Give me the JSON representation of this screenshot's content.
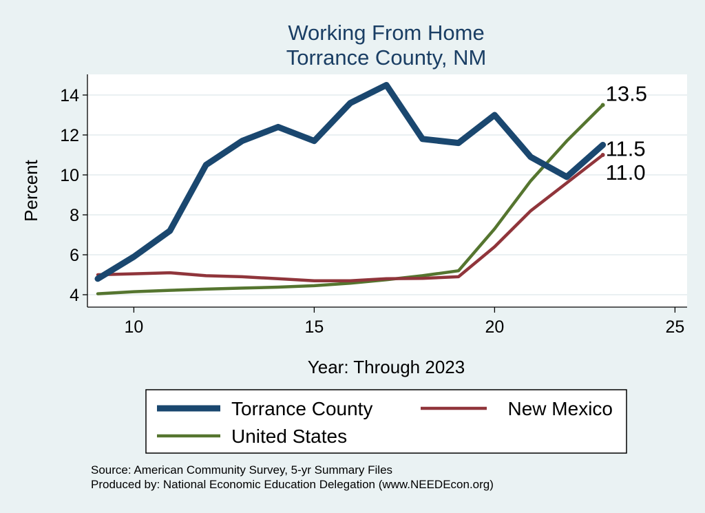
{
  "chart_data": {
    "type": "line",
    "title": [
      "Working From Home",
      "Torrance County, NM"
    ],
    "xlabel": "Year: Through 2023",
    "ylabel": "Percent",
    "xlim": [
      9,
      25
    ],
    "ylim": [
      3.6,
      14.8
    ],
    "xticks": [
      10,
      15,
      20,
      25
    ],
    "yticks": [
      4,
      6,
      8,
      10,
      12,
      14
    ],
    "x": [
      9,
      10,
      11,
      12,
      13,
      14,
      15,
      16,
      17,
      18,
      19,
      20,
      21,
      22,
      23
    ],
    "series": [
      {
        "name": "Torrance County",
        "color": "#1a476f",
        "values": [
          4.8,
          5.9,
          7.2,
          10.5,
          11.7,
          12.4,
          11.7,
          13.6,
          14.5,
          11.8,
          11.6,
          13.0,
          10.9,
          9.9,
          11.5
        ],
        "end_label": "11.5"
      },
      {
        "name": "New Mexico",
        "color": "#90353b",
        "values": [
          5.0,
          5.05,
          5.1,
          4.95,
          4.9,
          4.8,
          4.7,
          4.7,
          4.8,
          4.82,
          4.9,
          6.4,
          8.2,
          9.6,
          11.0
        ],
        "end_label": "11.0"
      },
      {
        "name": "United States",
        "color": "#55752f",
        "values": [
          4.05,
          4.15,
          4.22,
          4.28,
          4.33,
          4.38,
          4.45,
          4.58,
          4.75,
          4.95,
          5.2,
          7.3,
          9.7,
          11.7,
          13.5
        ],
        "end_label": "13.5"
      }
    ],
    "legend": [
      "Torrance County",
      "New Mexico",
      "United States"
    ],
    "source_lines": [
      "Source: American Community Survey, 5-yr Summary Files",
      "Produced by: National Economic Education Delegation (www.NEEDEcon.org)"
    ]
  }
}
